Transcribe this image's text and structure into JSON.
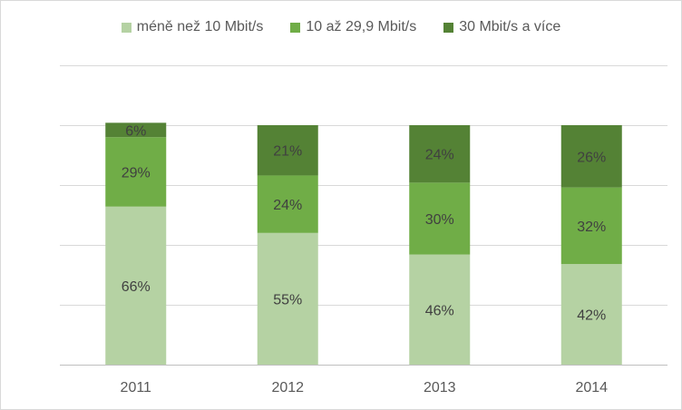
{
  "chart_data": {
    "type": "bar",
    "stacked": true,
    "percent_stacked": true,
    "categories": [
      "2011",
      "2012",
      "2013",
      "2014"
    ],
    "series": [
      {
        "name": "méně než 10 Mbit/s",
        "values": [
          66,
          55,
          46,
          42
        ],
        "labels": [
          "66%",
          "55%",
          "46%",
          "42%"
        ],
        "color": "#b5d2a3"
      },
      {
        "name": "10 až 29,9 Mbit/s",
        "values": [
          29,
          24,
          30,
          32
        ],
        "labels": [
          "29%",
          "24%",
          "30%",
          "32%"
        ],
        "color": "#70ad47"
      },
      {
        "name": "30 Mbit/s a více",
        "values": [
          6,
          21,
          24,
          26
        ],
        "labels": [
          "6%",
          "21%",
          "24%",
          "26%"
        ],
        "color": "#548235"
      }
    ],
    "ylim": [
      0,
      125
    ],
    "gridline_step": 25,
    "grid": true,
    "y_tick_labels_shown": false,
    "legend_position": "top"
  }
}
